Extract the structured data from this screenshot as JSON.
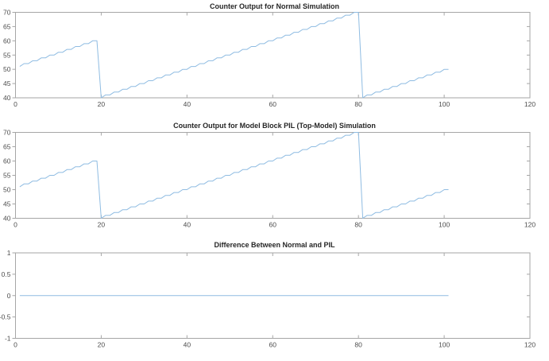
{
  "figure": {
    "background": "#ffffff"
  },
  "colors": {
    "axis_box": "#a6a6a6",
    "tick_mark": "#a6a6a6",
    "tick_label": "#4d4d4d",
    "title_text": "#262626",
    "line_blue": "#8fbce2"
  },
  "chart_data": [
    {
      "type": "line",
      "title": "Counter Output for Normal Simulation",
      "xlim": [
        0,
        120
      ],
      "ylim": [
        40,
        70
      ],
      "xticks": [
        0,
        20,
        40,
        60,
        80,
        100,
        120
      ],
      "xtick_labels": [
        "0",
        "20",
        "40",
        "60",
        "80",
        "100",
        "120"
      ],
      "yticks": [
        40,
        45,
        50,
        55,
        60,
        65,
        70
      ],
      "ytick_labels": [
        "40",
        "45",
        "50",
        "55",
        "60",
        "65",
        "70"
      ],
      "grid": false,
      "legend": "none",
      "series": [
        {
          "name": "normal-counter-output",
          "color": "#8fbce2",
          "description": "sawtooth counter, increments 1 every 2 time units",
          "segments": [
            {
              "style": "stepped",
              "from": [
                1,
                51
              ],
              "to": [
                19,
                60
              ]
            },
            {
              "style": "linear",
              "from": [
                19,
                60
              ],
              "to": [
                20,
                40
              ]
            },
            {
              "style": "stepped",
              "from": [
                20,
                40
              ],
              "to": [
                80,
                70
              ]
            },
            {
              "style": "linear",
              "from": [
                80,
                70
              ],
              "to": [
                81,
                40
              ]
            },
            {
              "style": "stepped",
              "from": [
                81,
                40
              ],
              "to": [
                101,
                50
              ]
            }
          ]
        }
      ]
    },
    {
      "type": "line",
      "title": "Counter Output for Model Block PIL (Top-Model) Simulation",
      "xlim": [
        0,
        120
      ],
      "ylim": [
        40,
        70
      ],
      "xticks": [
        0,
        20,
        40,
        60,
        80,
        100,
        120
      ],
      "xtick_labels": [
        "0",
        "20",
        "40",
        "60",
        "80",
        "100",
        "120"
      ],
      "yticks": [
        40,
        45,
        50,
        55,
        60,
        65,
        70
      ],
      "ytick_labels": [
        "40",
        "45",
        "50",
        "55",
        "60",
        "65",
        "70"
      ],
      "grid": false,
      "legend": "none",
      "series": [
        {
          "name": "pil-counter-output",
          "color": "#8fbce2",
          "description": "identical sawtooth counter, increments 1 every 2 time units",
          "segments": [
            {
              "style": "stepped",
              "from": [
                1,
                51
              ],
              "to": [
                19,
                60
              ]
            },
            {
              "style": "linear",
              "from": [
                19,
                60
              ],
              "to": [
                20,
                40
              ]
            },
            {
              "style": "stepped",
              "from": [
                20,
                40
              ],
              "to": [
                80,
                70
              ]
            },
            {
              "style": "linear",
              "from": [
                80,
                70
              ],
              "to": [
                81,
                40
              ]
            },
            {
              "style": "stepped",
              "from": [
                81,
                40
              ],
              "to": [
                101,
                50
              ]
            }
          ]
        }
      ]
    },
    {
      "type": "line",
      "title": "Difference Between Normal and PIL",
      "xlim": [
        0,
        120
      ],
      "ylim": [
        -1,
        1
      ],
      "xticks": [
        0,
        20,
        40,
        60,
        80,
        100,
        120
      ],
      "xtick_labels": [
        "0",
        "20",
        "40",
        "60",
        "80",
        "100",
        "120"
      ],
      "yticks": [
        -1,
        -0.5,
        0,
        0.5,
        1
      ],
      "ytick_labels": [
        "-1",
        "-0.5",
        "0",
        "0.5",
        "1"
      ],
      "grid": false,
      "legend": "none",
      "series": [
        {
          "name": "difference",
          "color": "#8fbce2",
          "description": "constant zero difference",
          "segments": [
            {
              "style": "linear",
              "from": [
                1,
                0
              ],
              "to": [
                101,
                0
              ]
            }
          ]
        }
      ]
    }
  ]
}
